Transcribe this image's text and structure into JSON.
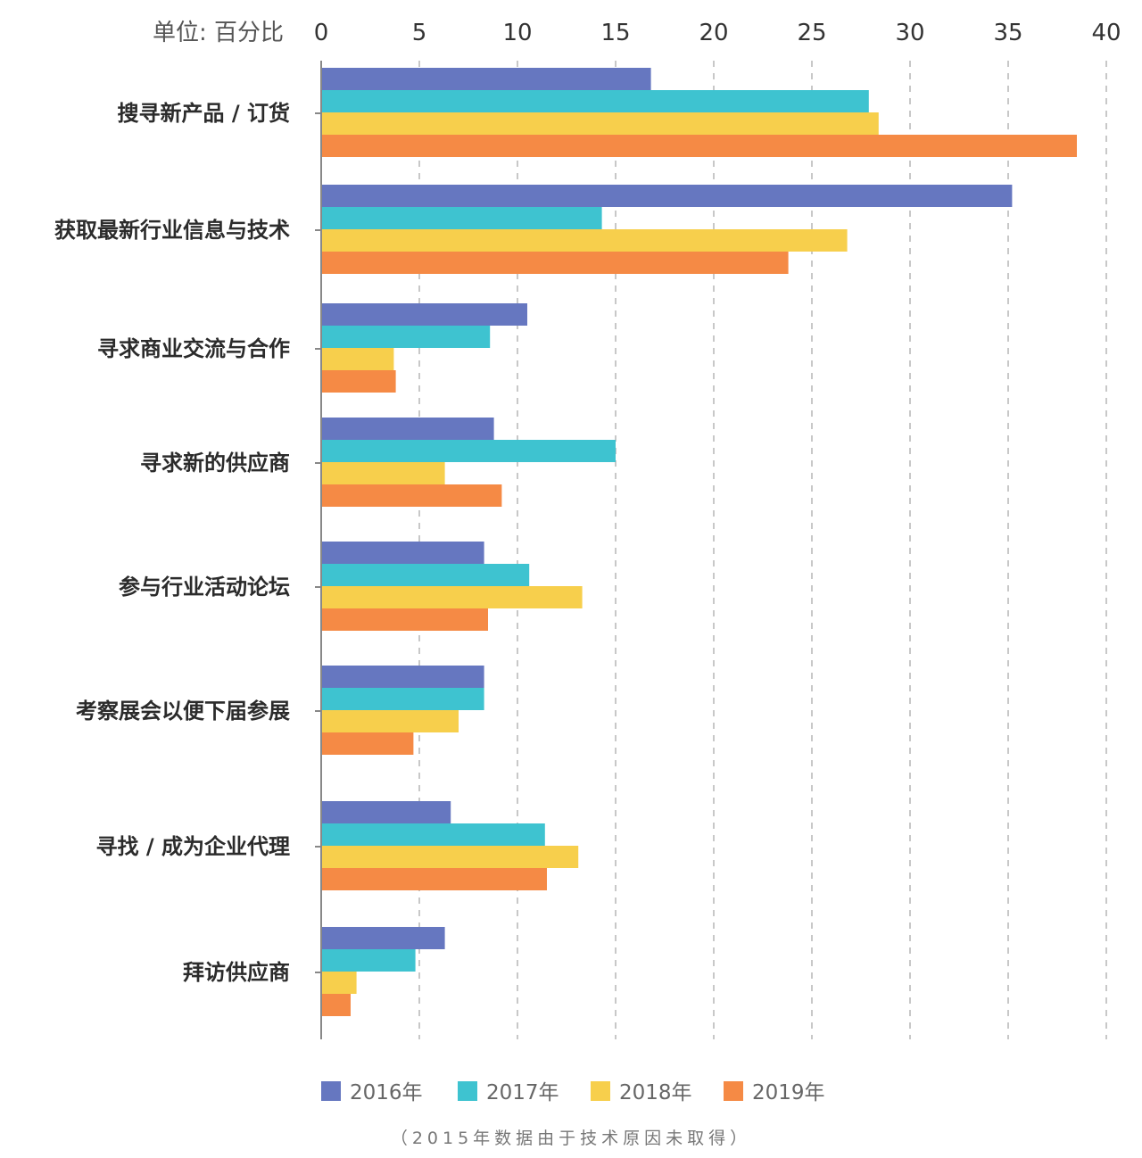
{
  "chart_data": {
    "type": "bar",
    "orientation": "horizontal",
    "unit_label": "单位: 百分比",
    "xlim": [
      0,
      40
    ],
    "x_ticks": [
      0,
      5,
      10,
      15,
      20,
      25,
      30,
      35,
      40
    ],
    "grid": "vertical dashed",
    "legend_position": "bottom",
    "categories": [
      "搜寻新产品 / 订货",
      "获取最新行业信息与技术",
      "寻求商业交流与合作",
      "寻求新的供应商",
      "参与行业活动论坛",
      "考察展会以便下届参展",
      "寻找 / 成为企业代理",
      "拜访供应商"
    ],
    "series": [
      {
        "name": "2016年",
        "color": "#6677c0",
        "values": [
          16.8,
          35.2,
          10.5,
          8.8,
          8.3,
          8.3,
          6.6,
          6.3
        ]
      },
      {
        "name": "2017年",
        "color": "#3ec3d0",
        "values": [
          27.9,
          14.3,
          8.6,
          15.0,
          10.6,
          8.3,
          11.4,
          4.8
        ]
      },
      {
        "name": "2018年",
        "color": "#f7cf4c",
        "values": [
          28.4,
          26.8,
          3.7,
          6.3,
          13.3,
          7.0,
          13.1,
          1.8
        ]
      },
      {
        "name": "2019年",
        "color": "#f58a45",
        "values": [
          38.5,
          23.8,
          3.8,
          9.2,
          8.5,
          4.7,
          11.5,
          1.5
        ]
      }
    ],
    "footnote": "（2015年数据由于技术原因未取得）"
  }
}
